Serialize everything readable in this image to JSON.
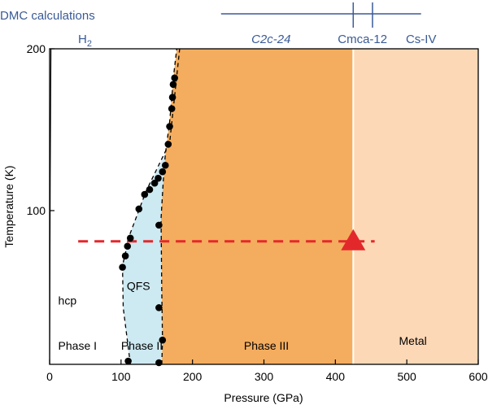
{
  "chart_data": {
    "type": "scatter",
    "xlabel": "Pressure (GPa)",
    "ylabel": "Temperature (K)",
    "xlim": [
      0,
      600
    ],
    "ylim": [
      5,
      200
    ],
    "x_ticks": [
      0,
      100,
      200,
      300,
      400,
      500,
      600
    ],
    "y_ticks": [
      100,
      200
    ],
    "points": [
      [
        175,
        182
      ],
      [
        173,
        178
      ],
      [
        172,
        170
      ],
      [
        171,
        163
      ],
      [
        168,
        152
      ],
      [
        166,
        141
      ],
      [
        162,
        128
      ],
      [
        158,
        124
      ],
      [
        152,
        120
      ],
      [
        147,
        117
      ],
      [
        140,
        113
      ],
      [
        133,
        110
      ],
      [
        125,
        101
      ],
      [
        113,
        83
      ],
      [
        109,
        78
      ],
      [
        106,
        72
      ],
      [
        102,
        65
      ],
      [
        153,
        91
      ],
      [
        153,
        40
      ],
      [
        158,
        20
      ],
      [
        110,
        7
      ],
      [
        153,
        6
      ]
    ],
    "colors": {
      "phase_iii": "#f4ad5e",
      "metal": "#fdd8b6",
      "qfs": "#cde9f2",
      "guide_line": "#e3282b",
      "marker": "#e3282b",
      "dmc_text": "#3a5a96"
    },
    "horizontal_guide": {
      "y": 81,
      "x_from": 40,
      "x_to": 455
    },
    "triangle_marker": {
      "x": 425,
      "y": 81
    },
    "phase_boundaries": {
      "qfs_left": [
        [
          113,
          5
        ],
        [
          103,
          40
        ],
        [
          102,
          66
        ],
        [
          112,
          85
        ],
        [
          135,
          112
        ],
        [
          168,
          142
        ],
        [
          182,
          200
        ]
      ],
      "phase_ii_iii": [
        [
          157,
          5
        ],
        [
          158,
          20
        ],
        [
          157,
          50
        ],
        [
          156,
          95
        ],
        [
          159,
          118
        ],
        [
          162,
          135
        ],
        [
          168,
          155
        ],
        [
          174,
          185
        ],
        [
          178,
          200
        ]
      ],
      "metal_left": 425
    },
    "annotations": {
      "dmc_title": "DMC calculations",
      "h2": "H",
      "h2_sub": "2",
      "c2c": "C2c-24",
      "cmca": "Cmca-12",
      "cs": "Cs-IV",
      "qfs": "QFS",
      "hcp": "hcp",
      "phase_i": "Phase I",
      "phase_ii": "Phase II",
      "phase_iii": "Phase III",
      "metal": "Metal"
    },
    "dmc_bar": {
      "x_from": 240,
      "x_to": 520,
      "transitions": [
        425,
        452
      ]
    }
  }
}
